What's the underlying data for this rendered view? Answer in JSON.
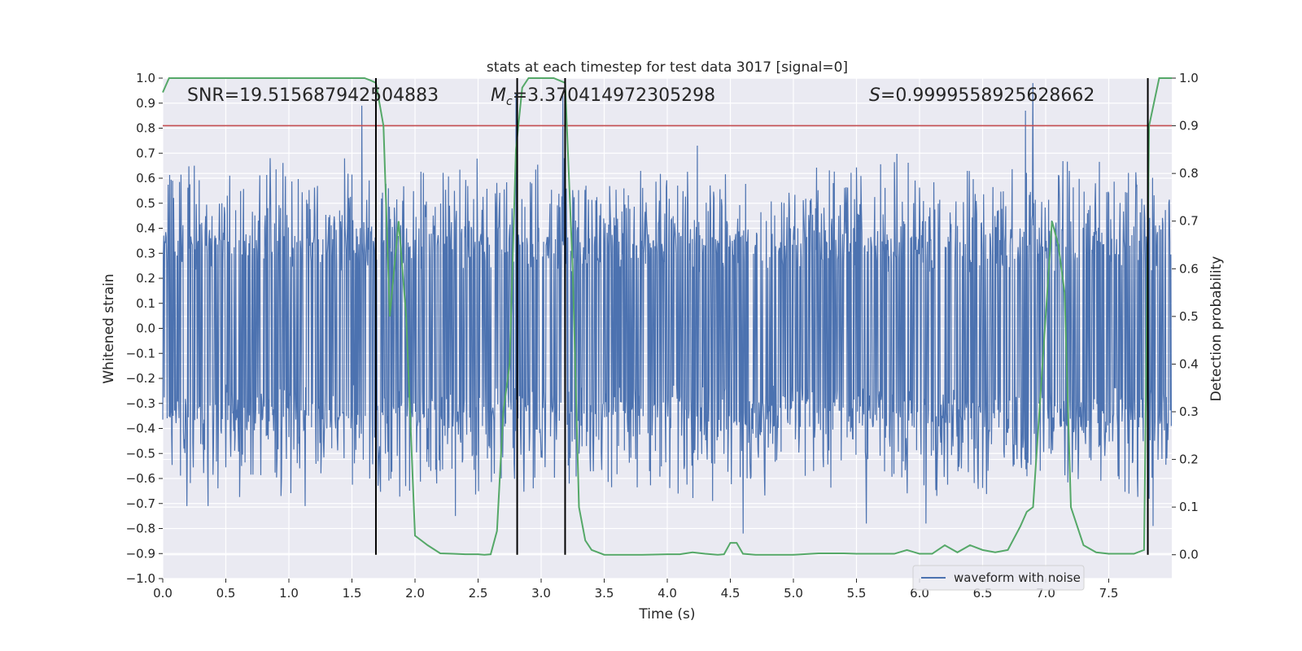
{
  "chart_data": {
    "type": "line",
    "title": "stats at each timestep for test data 3017 [signal=0]",
    "xlabel": "Time (s)",
    "ylabel": "Whitened strain",
    "ylabel_right": "Detection probability",
    "xlim": [
      0.0,
      8.0
    ],
    "ylim": [
      -1.0,
      1.0
    ],
    "ylim_right": [
      -0.05,
      1.0
    ],
    "x_ticks": [
      "0.0",
      "0.5",
      "1.0",
      "1.5",
      "2.0",
      "2.5",
      "3.0",
      "3.5",
      "4.0",
      "4.5",
      "5.0",
      "5.5",
      "6.0",
      "6.5",
      "7.0",
      "7.5"
    ],
    "y_ticks": [
      "1.0",
      "0.9",
      "0.8",
      "0.7",
      "0.6",
      "0.5",
      "0.4",
      "0.3",
      "0.2",
      "0.1",
      "0.0",
      "−0.1",
      "−0.2",
      "−0.3",
      "−0.4",
      "−0.5",
      "−0.6",
      "−0.7",
      "−0.8",
      "−0.9",
      "−1.0"
    ],
    "y_right_ticks": [
      "1.0",
      "0.9",
      "0.8",
      "0.7",
      "0.6",
      "0.5",
      "0.4",
      "0.3",
      "0.2",
      "0.1",
      "0.0"
    ],
    "annotations": {
      "snr": "SNR=19.515687942504883",
      "mc_symbol": "M",
      "mc_sub": "c",
      "mc_value": "=3.370414972305298",
      "s_symbol": "S",
      "s_value": "=0.9999558925628662"
    },
    "threshold_line": {
      "y": 0.81,
      "color": "#c44e52"
    },
    "vertical_lines": [
      1.69,
      2.81,
      3.19,
      7.81
    ],
    "legend": {
      "entries": [
        "waveform with noise"
      ],
      "location": "lower-right"
    },
    "grid": true,
    "colors": {
      "waveform": "#4c72b0",
      "probability": "#55a868",
      "threshold": "#c44e52",
      "vlines": "#000000",
      "background": "#eaeaf2"
    },
    "series": [
      {
        "name": "waveform with noise",
        "description_values": {
          "typical_envelope": 0.5,
          "samples": 2048
        },
        "peaks": [
          {
            "x": 0.08,
            "y": 0.59
          },
          {
            "x": 0.19,
            "y": -0.71
          },
          {
            "x": 0.25,
            "y": 0.65
          },
          {
            "x": 0.36,
            "y": -0.71
          },
          {
            "x": 0.53,
            "y": 0.61
          },
          {
            "x": 0.85,
            "y": 0.68
          },
          {
            "x": 1.13,
            "y": -0.71
          },
          {
            "x": 1.58,
            "y": 0.89
          },
          {
            "x": 2.32,
            "y": -0.75
          },
          {
            "x": 2.8,
            "y": 0.94
          },
          {
            "x": 3.17,
            "y": 0.93
          },
          {
            "x": 4.24,
            "y": 0.73
          },
          {
            "x": 4.36,
            "y": -0.69
          },
          {
            "x": 4.6,
            "y": -0.82
          },
          {
            "x": 5.58,
            "y": -0.78
          },
          {
            "x": 6.05,
            "y": -0.78
          },
          {
            "x": 6.84,
            "y": 0.87
          },
          {
            "x": 6.9,
            "y": 0.98
          },
          {
            "x": 7.85,
            "y": -0.79
          }
        ]
      },
      {
        "name": "",
        "axis": "right",
        "x": [
          0.0,
          0.05,
          0.1,
          0.3,
          0.5,
          0.7,
          1.0,
          1.3,
          1.6,
          1.65,
          1.69,
          1.75,
          1.8,
          1.87,
          1.93,
          2.0,
          2.1,
          2.2,
          2.3,
          2.4,
          2.5,
          2.55,
          2.6,
          2.65,
          2.7,
          2.75,
          2.8,
          2.85,
          2.9,
          3.0,
          3.1,
          3.19,
          3.25,
          3.3,
          3.35,
          3.4,
          3.5,
          3.6,
          3.8,
          4.0,
          4.1,
          4.2,
          4.3,
          4.4,
          4.45,
          4.5,
          4.55,
          4.6,
          4.7,
          5.0,
          5.2,
          5.4,
          5.5,
          5.6,
          5.8,
          5.9,
          6.0,
          6.1,
          6.2,
          6.3,
          6.4,
          6.5,
          6.6,
          6.7,
          6.8,
          6.85,
          6.9,
          7.0,
          7.05,
          7.1,
          7.15,
          7.2,
          7.3,
          7.4,
          7.5,
          7.7,
          7.78,
          7.82,
          7.9,
          8.0
        ],
        "y": [
          0.97,
          1.0,
          1.0,
          1.0,
          1.0,
          1.0,
          1.0,
          1.0,
          1.0,
          0.995,
          0.99,
          0.9,
          0.5,
          0.7,
          0.5,
          0.04,
          0.02,
          0.003,
          0.002,
          0.001,
          0.001,
          0.0,
          0.001,
          0.05,
          0.3,
          0.4,
          0.85,
          0.98,
          1.0,
          1.0,
          1.0,
          0.99,
          0.6,
          0.1,
          0.03,
          0.01,
          0.0,
          0.0,
          0.0,
          0.001,
          0.001,
          0.005,
          0.002,
          0.0,
          0.001,
          0.025,
          0.025,
          0.002,
          0.0,
          0.0,
          0.003,
          0.003,
          0.002,
          0.002,
          0.002,
          0.01,
          0.002,
          0.002,
          0.02,
          0.005,
          0.02,
          0.01,
          0.005,
          0.01,
          0.06,
          0.09,
          0.1,
          0.5,
          0.7,
          0.65,
          0.55,
          0.1,
          0.02,
          0.005,
          0.002,
          0.002,
          0.01,
          0.9,
          1.0,
          1.0
        ]
      }
    ]
  }
}
